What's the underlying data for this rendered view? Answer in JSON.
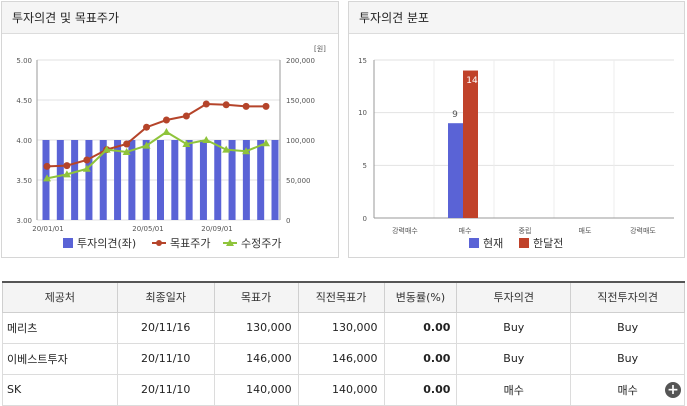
{
  "left_panel": {
    "title": "투자의견 및 목표주가"
  },
  "right_panel": {
    "title": "투자의견 분포"
  },
  "chart_data": [
    {
      "type": "bar+line",
      "y_left_ticks": [
        "5.00",
        "4.50",
        "4.00",
        "3.50",
        "3.00"
      ],
      "y_left_range": [
        3.0,
        5.0
      ],
      "y_right_ticks": [
        "200,000",
        "150,000",
        "100,000",
        "50,000",
        "0"
      ],
      "y_right_range": [
        0,
        200000
      ],
      "unit_label": "[원]",
      "x_tick_labels": [
        "20/01/01",
        "20/05/01",
        "20/09/01"
      ],
      "bars": {
        "name": "투자의견(좌)",
        "color": "#5a63d6",
        "values": [
          4,
          4,
          4,
          4,
          4,
          4,
          4,
          4,
          4,
          4,
          4,
          4,
          4,
          4,
          4,
          4,
          4
        ]
      },
      "series": [
        {
          "name": "목표주가",
          "color": "#b5442a",
          "values": [
            67000,
            68000,
            75000,
            88000,
            95000,
            116000,
            125000,
            130000,
            145000,
            144000,
            142000,
            142000
          ]
        },
        {
          "name": "수정주가",
          "color": "#8fc43b",
          "values": [
            52000,
            57000,
            64000,
            88000,
            85000,
            93000,
            110000,
            95000,
            100000,
            88000,
            86000,
            96000
          ]
        }
      ]
    },
    {
      "type": "bar",
      "y_ticks": [
        "15",
        "10",
        "5",
        "0"
      ],
      "y_range": [
        0,
        15
      ],
      "categories": [
        "강력매수",
        "매수",
        "중립",
        "매도",
        "강력매도"
      ],
      "series": [
        {
          "name": "현재",
          "color": "#5a63d6",
          "values": [
            0,
            9,
            0,
            0,
            0
          ]
        },
        {
          "name": "한달전",
          "color": "#c0422a",
          "values": [
            0,
            14,
            0,
            0,
            0
          ]
        }
      ],
      "data_labels": {
        "current": "9",
        "month_ago": "14"
      }
    }
  ],
  "table": {
    "headers": [
      "제공처",
      "최종일자",
      "목표가",
      "직전목표가",
      "변동률(%)",
      "투자의견",
      "직전투자의견"
    ],
    "rows": [
      [
        "메리츠",
        "20/11/16",
        "130,000",
        "130,000",
        "0.00",
        "Buy",
        "Buy"
      ],
      [
        "이베스트투자",
        "20/11/10",
        "146,000",
        "146,000",
        "0.00",
        "Buy",
        "Buy"
      ],
      [
        "SK",
        "20/11/10",
        "140,000",
        "140,000",
        "0.00",
        "매수",
        "매수"
      ]
    ]
  },
  "icons": {
    "plus": "+"
  }
}
